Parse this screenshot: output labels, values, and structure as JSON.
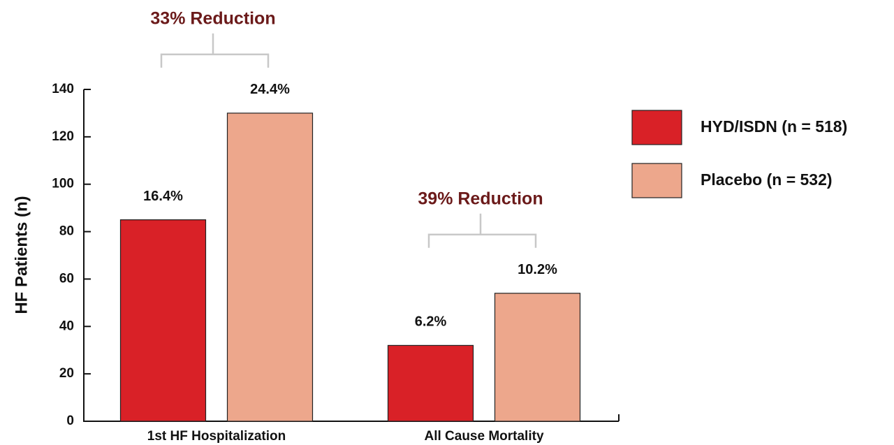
{
  "chart_data": {
    "type": "bar",
    "y_label": "HF Patients (n)",
    "categories": [
      "1st HF Hospitalization",
      "All Cause Mortality"
    ],
    "series": [
      {
        "name": "HYD/ISDN (n = 518)",
        "color": "#d92127",
        "values": [
          85,
          32
        ],
        "labels": [
          "16.4%",
          "6.2%"
        ]
      },
      {
        "name": "Placebo (n = 532)",
        "color": "#eda78c",
        "values": [
          130,
          54
        ],
        "labels": [
          "24.4%",
          "10.2%"
        ]
      }
    ],
    "brackets": [
      "33% Reduction",
      "39% Reduction"
    ],
    "ylim": [
      0,
      140
    ],
    "yticks": [
      0,
      20,
      40,
      60,
      80,
      100,
      120,
      140
    ],
    "legend": "right"
  }
}
